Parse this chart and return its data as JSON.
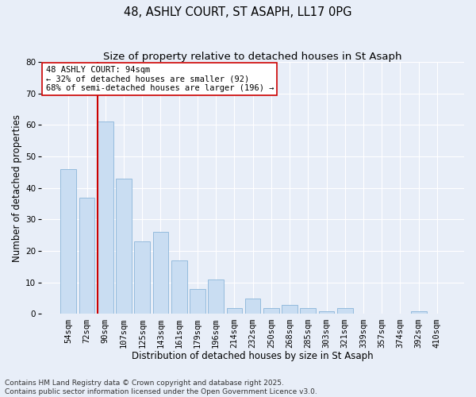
{
  "title": "48, ASHLY COURT, ST ASAPH, LL17 0PG",
  "subtitle": "Size of property relative to detached houses in St Asaph",
  "xlabel": "Distribution of detached houses by size in St Asaph",
  "ylabel": "Number of detached properties",
  "categories": [
    "54sqm",
    "72sqm",
    "90sqm",
    "107sqm",
    "125sqm",
    "143sqm",
    "161sqm",
    "179sqm",
    "196sqm",
    "214sqm",
    "232sqm",
    "250sqm",
    "268sqm",
    "285sqm",
    "303sqm",
    "321sqm",
    "339sqm",
    "357sqm",
    "374sqm",
    "392sqm",
    "410sqm"
  ],
  "values": [
    46,
    37,
    61,
    43,
    23,
    26,
    17,
    8,
    11,
    2,
    5,
    2,
    3,
    2,
    1,
    2,
    0,
    0,
    0,
    1,
    0
  ],
  "bar_color": "#c9ddf2",
  "bar_edge_color": "#8ab4d9",
  "background_color": "#e8eef8",
  "grid_color": "#ffffff",
  "annotation_text": "48 ASHLY COURT: 94sqm\n← 32% of detached houses are smaller (92)\n68% of semi-detached houses are larger (196) →",
  "vline_color": "#cc0000",
  "annotation_box_color": "#ffffff",
  "annotation_box_edge": "#cc0000",
  "ylim": [
    0,
    80
  ],
  "yticks": [
    0,
    10,
    20,
    30,
    40,
    50,
    60,
    70,
    80
  ],
  "footer": "Contains HM Land Registry data © Crown copyright and database right 2025.\nContains public sector information licensed under the Open Government Licence v3.0.",
  "title_fontsize": 10.5,
  "subtitle_fontsize": 9.5,
  "axis_label_fontsize": 8.5,
  "tick_fontsize": 7.5,
  "annotation_fontsize": 7.5,
  "footer_fontsize": 6.5
}
